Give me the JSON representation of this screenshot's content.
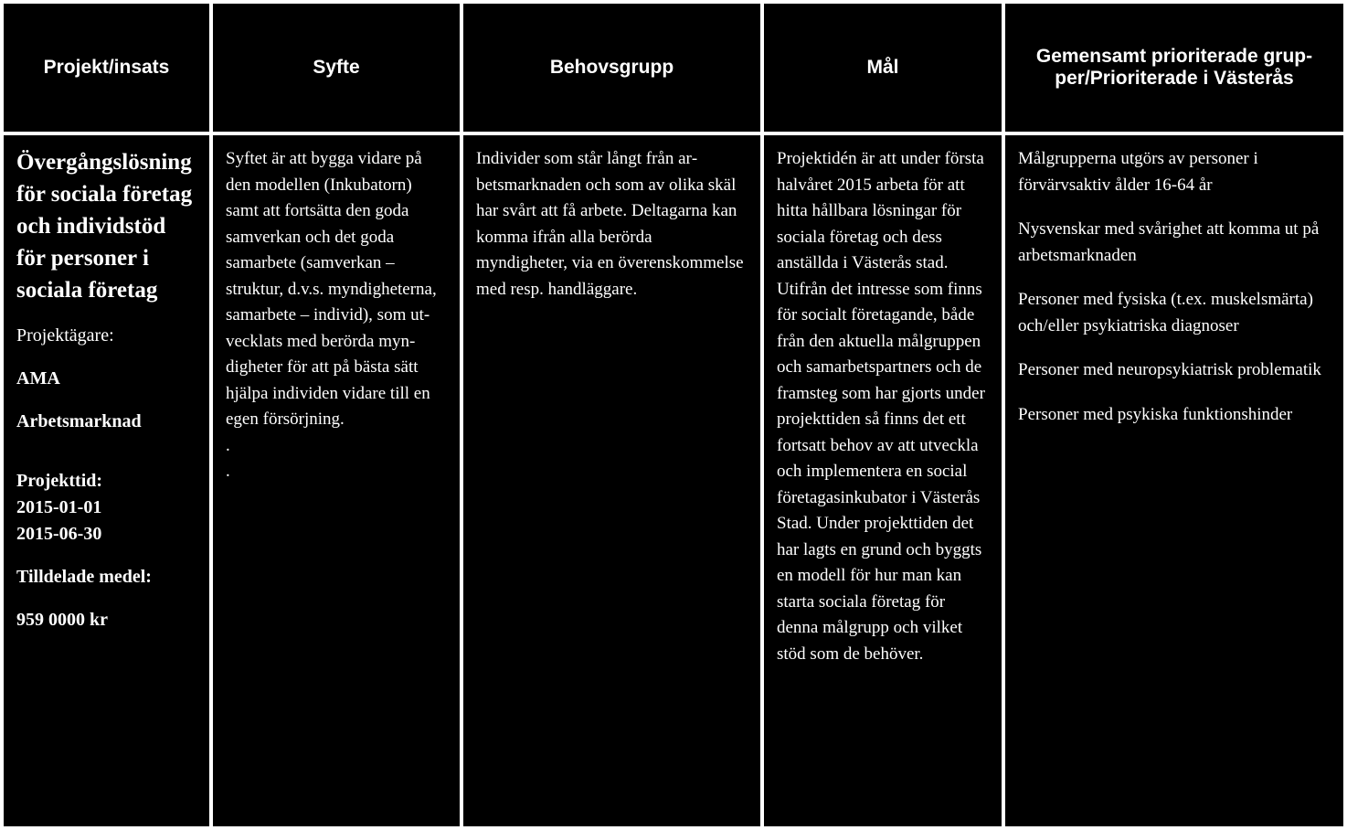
{
  "table": {
    "headers": {
      "col1": "Projekt/insats",
      "col2": "Syfte",
      "col3": "Behovsgrupp",
      "col4": "Mål",
      "col5": "Gemensamt prioriterade grup­per/Prioriterade i Västerås"
    },
    "row": {
      "projekt": {
        "title": "Övergångslös­ning för sociala företag och in­dividstöd för personer i soci­ala företag",
        "agare_label": "Projektägare:",
        "agare_value1": "AMA",
        "agare_value2": "Arbetsmarknad",
        "tid_label": "Projekttid:",
        "tid_start": "2015-01-01",
        "tid_end": "2015-06-30",
        "medel_label": "Tilldelade medel:",
        "medel_value": "959 0000 kr"
      },
      "syfte": {
        "text": "Syftet är att bygga vidare på den modellen (Inkubatorn) samt att fort­sätta den goda samverkan och det goda samarbete (samverkan – struktur, d.v.s. myndigheterna, sam­arbete – individ), som ut­vecklats med berörda myn­digheter för att på bästa sätt hjälpa individen vidare till en egen försörjning.",
        "dot1": ".",
        "dot2": "."
      },
      "behovsgrupp": {
        "text": "Individer som står långt från ar­betsmarknaden och som av olika skäl har svårt att få arbete. Delta­garna kan komma ifrån alla be­rörda myndigheter, via en över­enskommelse med resp. handläg­gare."
      },
      "mal": {
        "p1": "Projektidén är att under första halvåret 2015 arbeta för att hitta hållbara lös­ningar för sociala företag och dess anställda i Väs­terås stad.",
        "p2": "Utifrån det intresse som finns för socialt företa­gande, både från den aktu­ella målgruppen och sam­arbetspartners och de framsteg som har gjorts under projekttiden så finns det ett fortsatt behov av att utveckla och implemen­tera en social företagasin­kubator i Västerås Stad. Under projekttiden det har lagts en grund och byggts en modell för hur man kan starta sociala företag för denna målgrupp och vilket stöd som de behöver."
      },
      "grupper": {
        "g1": "Målgrupperna utgörs av personer i förvärvsaktiv ålder 16-64 år",
        "g2": "Nysvenskar med svårighet att komma ut på arbetsmarknaden",
        "g3": "Personer med fysiska (t.ex. mus­kelsmärta) och/eller psykiatriska diagnoser",
        "g4": "Personer med neuropsykiatrisk problematik",
        "g5": "Personer med psykiska funktions­hinder"
      }
    }
  },
  "colors": {
    "background": "#000000",
    "text": "#ffffff",
    "border": "#ffffff"
  },
  "typography": {
    "header_fontsize": 21,
    "body_fontsize": 19,
    "title_fontsize": 25
  }
}
